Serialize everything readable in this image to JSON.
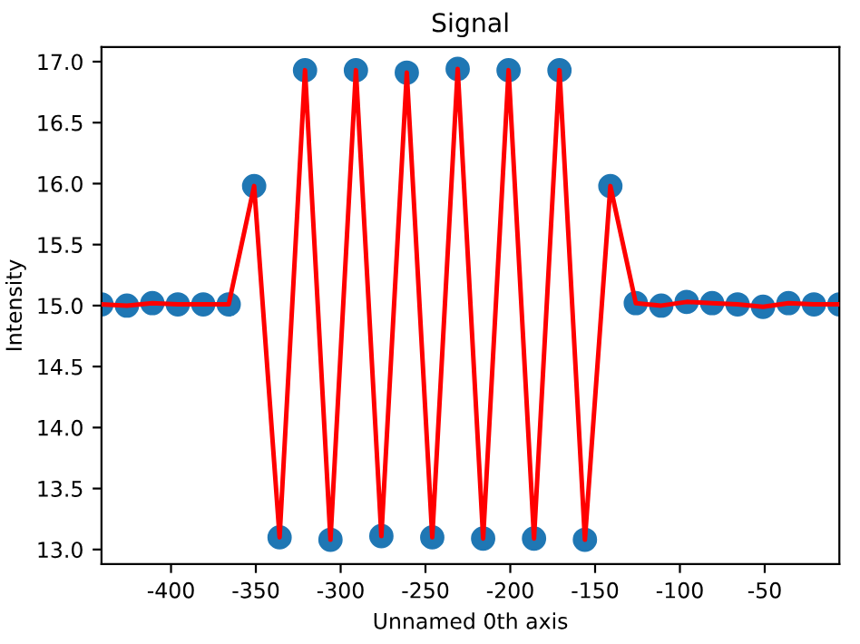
{
  "chart_data": {
    "type": "line",
    "title": "Signal",
    "xlabel": "Unnamed 0th axis",
    "ylabel": "Intensity",
    "x": [
      -441,
      -426,
      -411,
      -396,
      -381,
      -366,
      -351,
      -336,
      -321,
      -306,
      -291,
      -276,
      -261,
      -246,
      -231,
      -216,
      -201,
      -186,
      -171,
      -156,
      -141,
      -126,
      -111,
      -96,
      -81,
      -66,
      -51,
      -36,
      -21,
      -6
    ],
    "series": [
      {
        "type": "scatter",
        "color": "#1f77b4",
        "marker": "circle",
        "values": [
          15.01,
          15.0,
          15.02,
          15.01,
          15.01,
          15.01,
          15.98,
          13.1,
          16.93,
          13.08,
          16.93,
          13.11,
          16.91,
          13.1,
          16.94,
          13.09,
          16.93,
          13.09,
          16.93,
          13.08,
          15.98,
          15.02,
          15.0,
          15.03,
          15.02,
          15.01,
          14.99,
          15.02,
          15.01,
          15.01
        ]
      },
      {
        "color": "#ff0000",
        "line_style": "solid",
        "values": [
          15.01,
          15.0,
          15.02,
          15.01,
          15.01,
          15.01,
          15.98,
          13.1,
          16.93,
          13.08,
          16.93,
          13.11,
          16.91,
          13.1,
          16.94,
          13.09,
          16.93,
          13.09,
          16.93,
          13.08,
          15.98,
          15.02,
          15.0,
          15.03,
          15.02,
          15.01,
          14.99,
          15.02,
          15.01,
          15.01
        ]
      }
    ],
    "xlim": [
      -441,
      -6
    ],
    "ylim": [
      12.88,
      17.12
    ],
    "xticks": [
      -400,
      -350,
      -300,
      -250,
      -200,
      -150,
      -100,
      -50
    ],
    "yticks": [
      {
        "value": 13,
        "label": "13.0"
      },
      {
        "value": 13.5,
        "label": "13.5"
      },
      {
        "value": 14,
        "label": "14.0"
      },
      {
        "value": 14.5,
        "label": "14.5"
      },
      {
        "value": 15,
        "label": "15.0"
      },
      {
        "value": 15.5,
        "label": "15.5"
      },
      {
        "value": 16,
        "label": "16.0"
      },
      {
        "value": 16.5,
        "label": "16.5"
      },
      {
        "value": 17,
        "label": "17.0"
      }
    ],
    "grid": false,
    "legend": false
  }
}
